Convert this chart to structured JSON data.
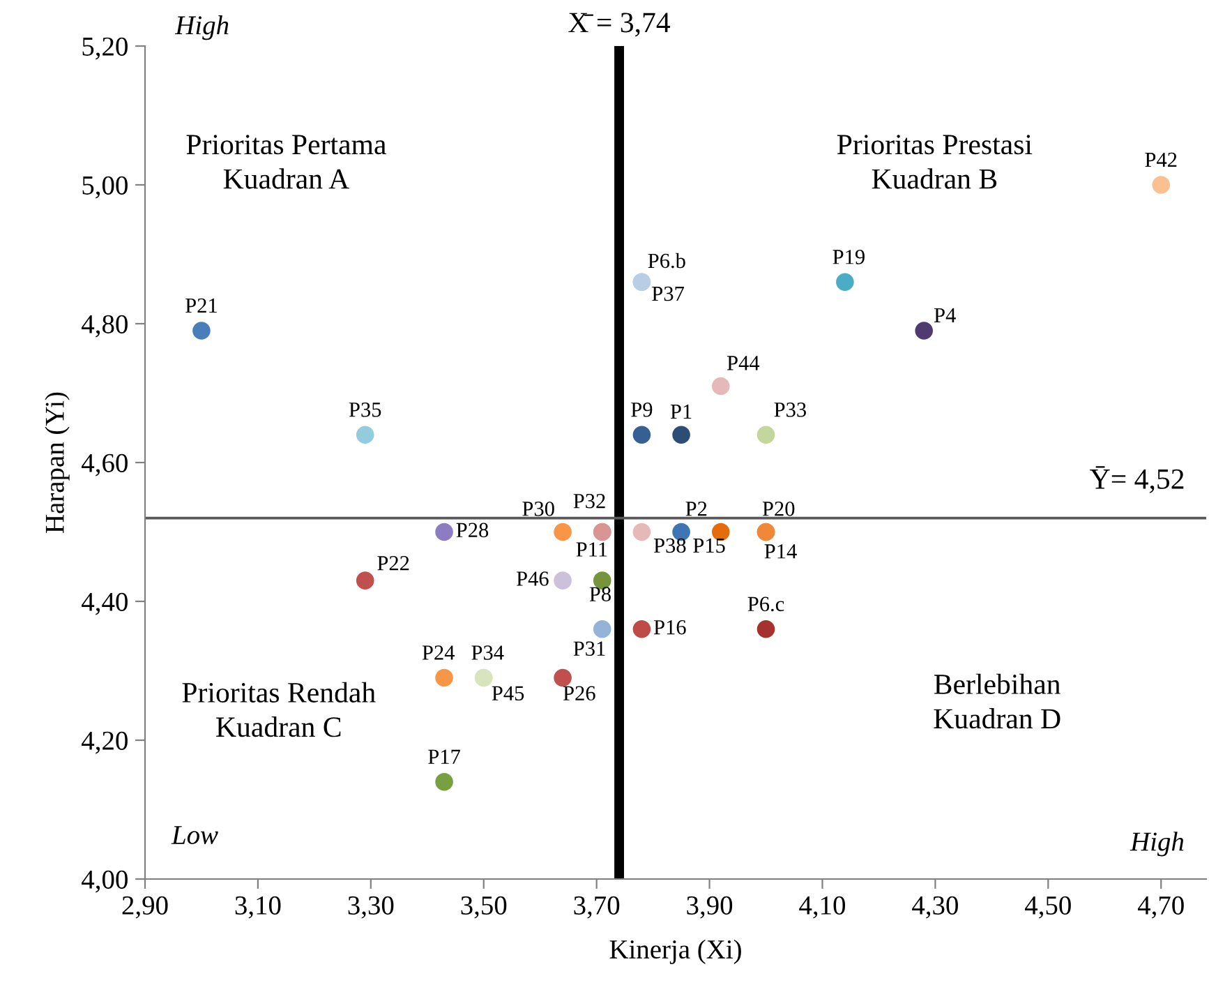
{
  "chart_data": {
    "type": "scatter",
    "xlabel": "Kinerja (Xi)",
    "ylabel": "Harapan (Yi)",
    "xlim": [
      2.9,
      4.78
    ],
    "ylim": [
      4.0,
      5.2
    ],
    "xticks": [
      {
        "value": 2.9,
        "label": "2,90"
      },
      {
        "value": 3.1,
        "label": "3,10"
      },
      {
        "value": 3.3,
        "label": "3,30"
      },
      {
        "value": 3.5,
        "label": "3,50"
      },
      {
        "value": 3.7,
        "label": "3,70"
      },
      {
        "value": 3.9,
        "label": "3,90"
      },
      {
        "value": 4.1,
        "label": "4,10"
      },
      {
        "value": 4.3,
        "label": "4,30"
      },
      {
        "value": 4.5,
        "label": "4,50"
      },
      {
        "value": 4.7,
        "label": "4,70"
      }
    ],
    "yticks": [
      {
        "value": 4.0,
        "label": "4,00"
      },
      {
        "value": 4.2,
        "label": "4,20"
      },
      {
        "value": 4.4,
        "label": "4,40"
      },
      {
        "value": 4.6,
        "label": "4,60"
      },
      {
        "value": 4.8,
        "label": "4,80"
      },
      {
        "value": 5.0,
        "label": "5,00"
      },
      {
        "value": 5.2,
        "label": "5,20"
      }
    ],
    "grid": false,
    "marker": "circle",
    "x": [
      3.0,
      3.29,
      3.43,
      3.29,
      3.64,
      3.71,
      3.71,
      3.64,
      3.71,
      3.71,
      3.78,
      4.0,
      3.43,
      3.5,
      3.5,
      3.64,
      3.43,
      3.78,
      3.85,
      4.0,
      3.92,
      3.78,
      3.78,
      4.14,
      4.28,
      4.7,
      3.78,
      3.85,
      3.92,
      4.0,
      4.0
    ],
    "values": [
      4.79,
      4.64,
      4.5,
      4.43,
      4.5,
      4.5,
      4.5,
      4.43,
      4.43,
      4.36,
      4.36,
      4.36,
      4.29,
      4.29,
      4.29,
      4.29,
      4.14,
      4.64,
      4.64,
      4.64,
      4.71,
      4.86,
      4.86,
      4.86,
      4.79,
      5.0,
      4.5,
      4.5,
      4.5,
      4.5,
      4.5
    ],
    "value_labels": [
      "P21",
      "P35",
      "P28",
      "P22",
      "P30",
      "P32",
      "P11",
      "P46",
      "P8",
      "P31",
      "P16",
      "P6.c",
      "P24",
      "P34",
      "P45",
      "P26",
      "P17",
      "P9",
      "P1",
      "P33",
      "P44",
      "P6.b",
      "P37",
      "P19",
      "P4",
      "P42",
      "P38",
      "P2",
      "P15",
      "P20",
      "P14"
    ],
    "colors": [
      "#4a7ebb",
      "#93cddd",
      "#8e7cc3",
      "#c0504d",
      "#f79646",
      "#d99594",
      "#d99594",
      "#ccc1da",
      "#77933c",
      "#95b3d7",
      "#be4b48",
      "#a5322f",
      "#f79646",
      "#d7e4bd",
      "#d7e4bd",
      "#c0504d",
      "#77a040",
      "#376092",
      "#2c4d75",
      "#c3d69b",
      "#e6b9b8",
      "#b9cde5",
      "#b9cde5",
      "#4bacc6",
      "#4f3b70",
      "#fac090",
      "#e6b9b8",
      "#3f74b5",
      "#e46c0a",
      "#f0883a",
      "#f0883a"
    ],
    "ref_lines": [
      {
        "axis": "x",
        "value": 3.74,
        "label": "X̄ = 3,74",
        "color": "#000000"
      },
      {
        "axis": "y",
        "value": 4.52,
        "label": "Ȳ= 4,52",
        "color": "#595959"
      }
    ],
    "annotations": [
      "Prioritas Pertama\nKuadran A",
      "Prioritas Prestasi\nKuadran B",
      "Prioritas Rendah\nKuadran C",
      "Berlebihan\nKuadran D",
      "High",
      "Low",
      "High"
    ]
  }
}
